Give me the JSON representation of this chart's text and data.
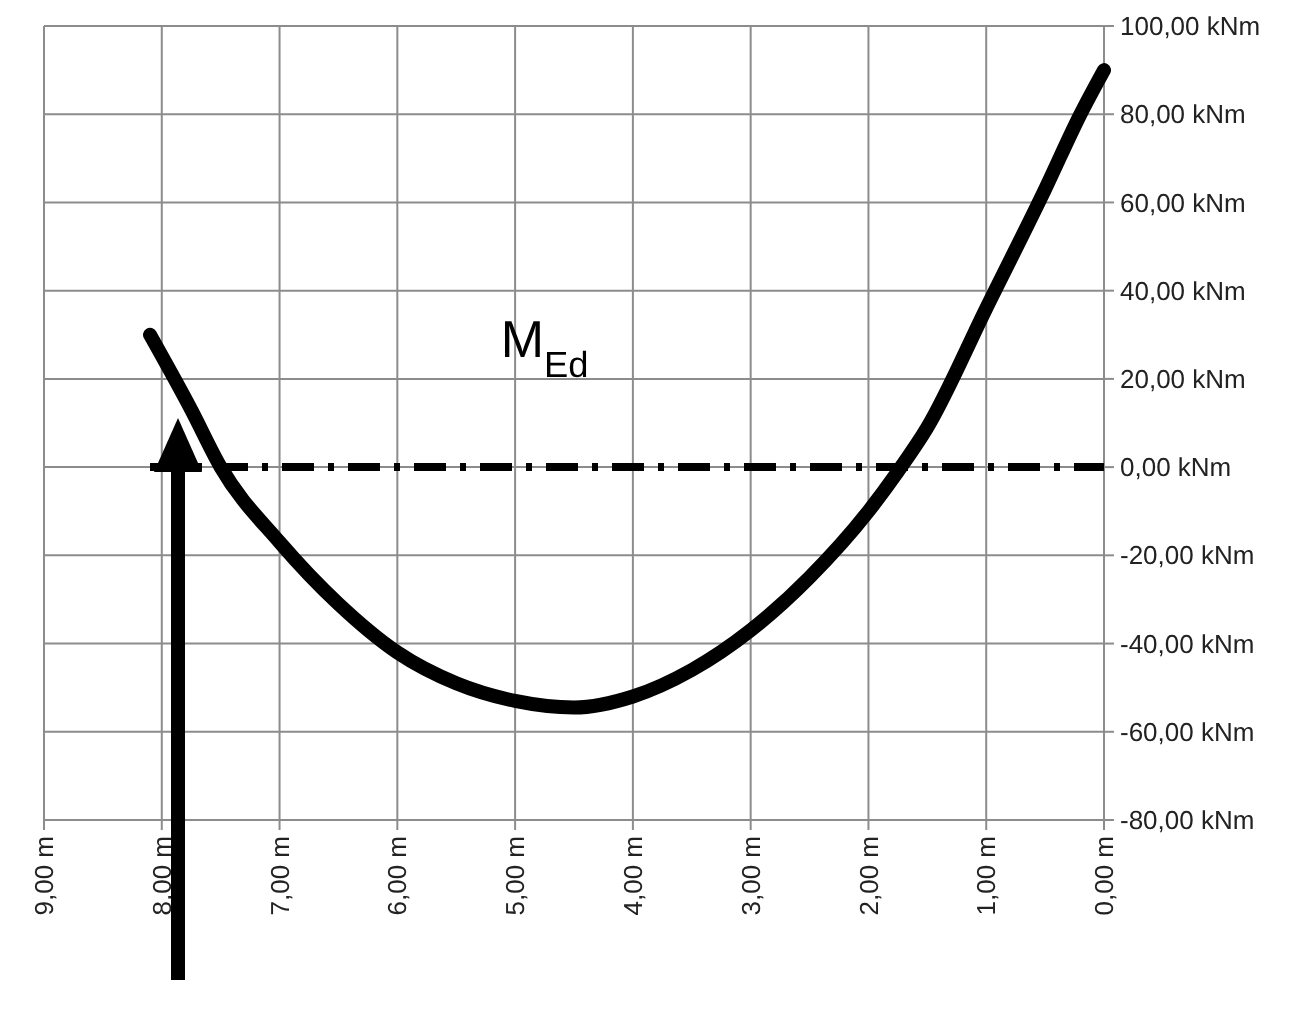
{
  "chart_data": {
    "type": "line",
    "x": [
      8.1,
      7.75,
      7.5,
      7.0,
      6.5,
      6.0,
      5.5,
      5.0,
      4.5,
      4.0,
      3.5,
      3.0,
      2.5,
      2.0,
      1.75,
      1.5,
      1.0,
      0.5,
      0.2,
      0.0
    ],
    "series": [
      {
        "name": "M$_{Ed}$",
        "color": "#000000",
        "values": [
          30,
          13,
          0,
          -17,
          -31,
          -42,
          -49,
          -53,
          -54.5,
          -52,
          -46,
          -37,
          -25,
          -10,
          -1,
          9,
          36,
          63,
          80,
          90
        ]
      },
      {
        "color": "#000000",
        "line_style": "dashed",
        "x": [
          8.1,
          0
        ],
        "values": [
          0,
          0
        ]
      }
    ],
    "xlim": [
      9,
      0
    ],
    "ylim": [
      -80,
      100
    ],
    "xticks": [
      {
        "value": 9,
        "label": "9,00 m"
      },
      {
        "value": 8,
        "label": "8,00 m"
      },
      {
        "value": 7,
        "label": "7,00 m"
      },
      {
        "value": 6,
        "label": "6,00 m"
      },
      {
        "value": 5,
        "label": "5,00 m"
      },
      {
        "value": 4,
        "label": "4,00 m"
      },
      {
        "value": 3,
        "label": "3,00 m"
      },
      {
        "value": 2,
        "label": "2,00 m"
      },
      {
        "value": 1,
        "label": "1,00 m"
      },
      {
        "value": 0,
        "label": "0,00 m"
      }
    ],
    "yticks": [
      {
        "value": 100,
        "label": "100,00 kNm"
      },
      {
        "value": 80,
        "label": "80,00 kNm"
      },
      {
        "value": 60,
        "label": "60,00 kNm"
      },
      {
        "value": 40,
        "label": "40,00 kNm"
      },
      {
        "value": 20,
        "label": "20,00 kNm"
      },
      {
        "value": 0,
        "label": "0,00 kNm"
      },
      {
        "value": -20,
        "label": "-20,00 kNm"
      },
      {
        "value": -40,
        "label": "-40,00 kNm"
      },
      {
        "value": -60,
        "label": "-60,00 kNm"
      },
      {
        "value": -80,
        "label": "-80,00 kNm"
      }
    ],
    "grid": true,
    "marker": "none",
    "line_style": "solid"
  }
}
